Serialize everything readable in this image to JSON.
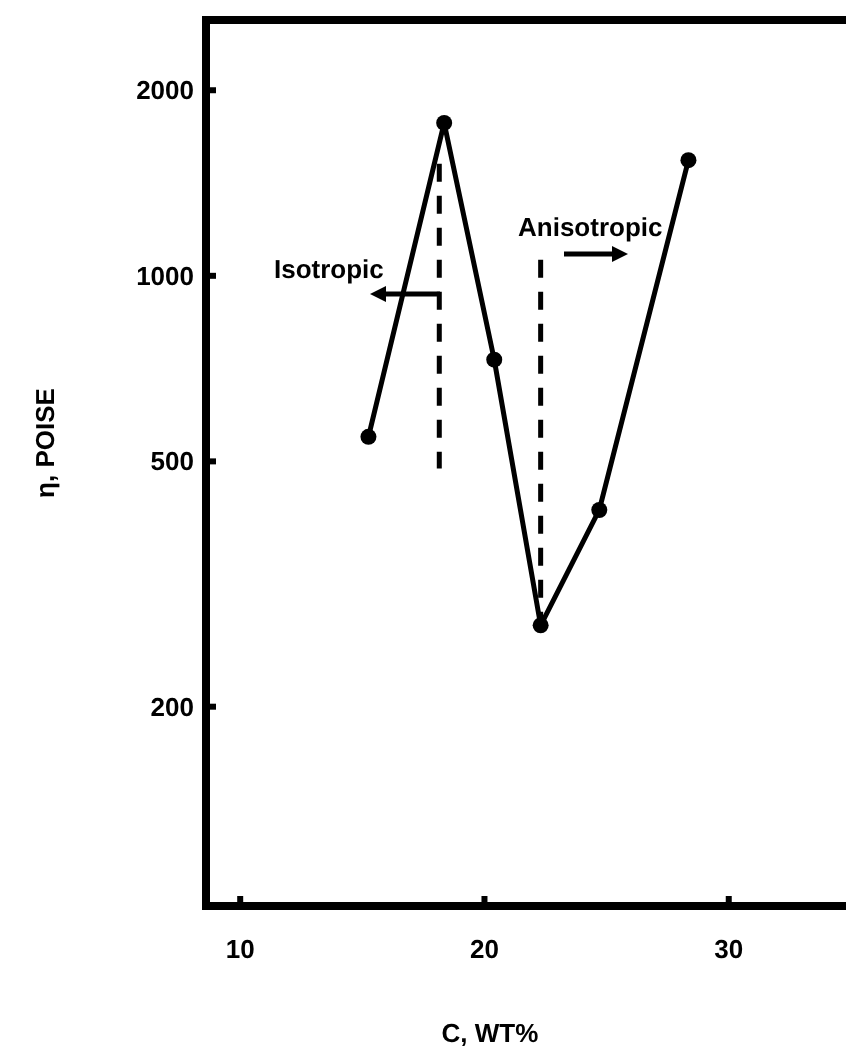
{
  "chart_data": {
    "type": "line",
    "xlabel": "C, WT%",
    "ylabel": "η, POISE",
    "xlim": [
      8.6,
      34.8
    ],
    "xticks": [
      10,
      20,
      30
    ],
    "ylim": [
      95,
      2600
    ],
    "yticks": [
      200,
      500,
      1000,
      2000
    ],
    "log": true,
    "grid": false,
    "series": [
      {
        "color": "#000000",
        "marker": "circle",
        "line_style": "solid",
        "x": [
          15.25,
          18.35,
          20.4,
          22.3,
          24.7,
          28.35
        ],
        "values": [
          548,
          1770,
          731,
          271,
          417,
          1540
        ]
      },
      {
        "color": "#000000",
        "marker": "none",
        "line_style": "dashed",
        "x": [
          18.15,
          18.15
        ],
        "values": [
          1520,
          487
        ]
      },
      {
        "color": "#000000",
        "marker": "none",
        "line_style": "dashed",
        "x": [
          22.3,
          22.3
        ],
        "values": [
          1062,
          275
        ]
      }
    ],
    "annotations": [
      "Isotropic",
      "Anisotropic"
    ]
  }
}
